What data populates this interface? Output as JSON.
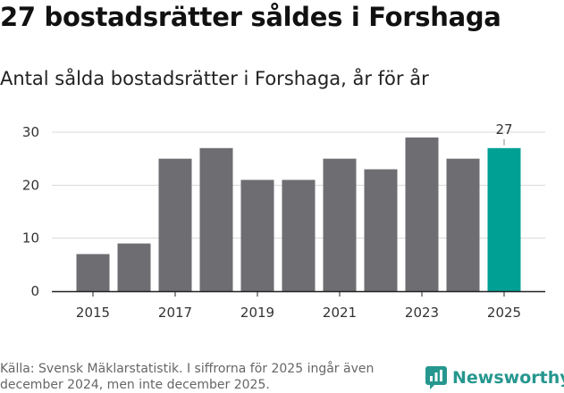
{
  "title": "27 bostadsrätter såldes i Forshaga",
  "subtitle": "Antal sålda bostadsrätter i Forshaga, år för år",
  "source": "Källa: Svensk Mäklarstatistik. I siffrorna för 2025 ingår även december 2024, men inte december 2025.",
  "brand": {
    "name": "Newsworthy",
    "icon": "newsworthy-logo-icon"
  },
  "colors": {
    "bar": "#6e6d72",
    "highlight": "#00a094",
    "grid": "#d9d9d9",
    "axis": "#222222",
    "brand": "#26978f"
  },
  "chart_data": {
    "type": "bar",
    "title": "27 bostadsrätter såldes i Forshaga",
    "subtitle": "Antal sålda bostadsrätter i Forshaga, år för år",
    "xlabel": "",
    "ylabel": "",
    "categories": [
      "2015",
      "2016",
      "2017",
      "2018",
      "2019",
      "2020",
      "2021",
      "2022",
      "2023",
      "2024",
      "2025"
    ],
    "values": [
      7,
      9,
      25,
      27,
      21,
      21,
      25,
      23,
      29,
      25,
      27
    ],
    "x_tick_labels": [
      "2015",
      "2017",
      "2019",
      "2021",
      "2023",
      "2025"
    ],
    "y_ticks": [
      0,
      10,
      20,
      30
    ],
    "ylim": [
      0,
      30
    ],
    "highlight_category": "2025",
    "data_labels": [
      {
        "category": "2025",
        "text": "27"
      }
    ],
    "grid": true,
    "legend": "none"
  }
}
